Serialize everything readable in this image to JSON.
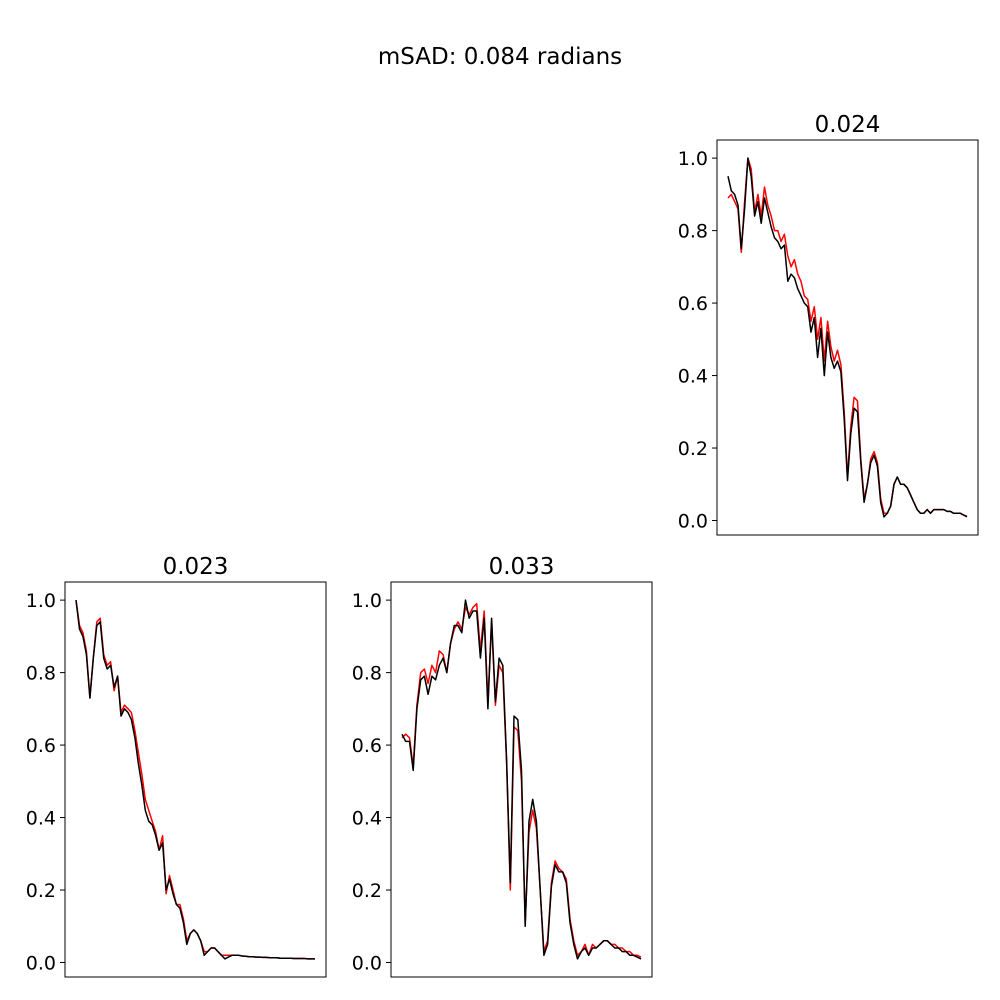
{
  "suptitle": "mSAD: 0.084 radians",
  "colors": {
    "reference": "#ff0000",
    "estimate": "#000000"
  },
  "chart_data": [
    {
      "type": "line",
      "title": "0.024",
      "ylim": [
        -0.04,
        1.05
      ],
      "yticks": [
        "0.0",
        "0.2",
        "0.4",
        "0.6",
        "0.8",
        "1.0"
      ],
      "xticks": "hidden",
      "series": [
        {
          "values": [
            0.89,
            0.9,
            0.88,
            0.86,
            0.74,
            0.88,
            1.0,
            0.97,
            0.85,
            0.9,
            0.84,
            0.92,
            0.87,
            0.84,
            0.8,
            0.8,
            0.77,
            0.79,
            0.73,
            0.7,
            0.72,
            0.68,
            0.66,
            0.62,
            0.61,
            0.55,
            0.59,
            0.5,
            0.56,
            0.44,
            0.55,
            0.48,
            0.44,
            0.47,
            0.43,
            0.3,
            0.12,
            0.26,
            0.34,
            0.33,
            0.17,
            0.06,
            0.1,
            0.17,
            0.19,
            0.16,
            0.06,
            0.02,
            0.02,
            0.04,
            0.1,
            0.12,
            0.1,
            0.1,
            0.09,
            0.07,
            0.05,
            0.03,
            0.02,
            0.02,
            0.03,
            0.02,
            0.03,
            0.03,
            0.03,
            0.03,
            0.025,
            0.025,
            0.02,
            0.02,
            0.02,
            0.015,
            0.012
          ]
        },
        {
          "values": [
            0.95,
            0.91,
            0.9,
            0.87,
            0.75,
            0.86,
            1.0,
            0.95,
            0.84,
            0.88,
            0.82,
            0.89,
            0.85,
            0.81,
            0.78,
            0.77,
            0.75,
            0.76,
            0.66,
            0.68,
            0.67,
            0.64,
            0.62,
            0.6,
            0.59,
            0.52,
            0.56,
            0.45,
            0.53,
            0.4,
            0.52,
            0.45,
            0.42,
            0.44,
            0.41,
            0.28,
            0.11,
            0.24,
            0.31,
            0.3,
            0.16,
            0.05,
            0.1,
            0.16,
            0.18,
            0.15,
            0.05,
            0.01,
            0.02,
            0.04,
            0.1,
            0.12,
            0.1,
            0.1,
            0.09,
            0.07,
            0.05,
            0.03,
            0.02,
            0.02,
            0.03,
            0.02,
            0.03,
            0.03,
            0.03,
            0.03,
            0.025,
            0.025,
            0.02,
            0.02,
            0.02,
            0.015,
            0.01
          ]
        }
      ]
    },
    {
      "type": "line",
      "title": "0.023",
      "ylim": [
        -0.04,
        1.05
      ],
      "yticks": [
        "0.0",
        "0.2",
        "0.4",
        "0.6",
        "0.8",
        "1.0"
      ],
      "xticks": "hidden",
      "series": [
        {
          "values": [
            1.0,
            0.93,
            0.91,
            0.86,
            0.73,
            0.84,
            0.94,
            0.95,
            0.85,
            0.82,
            0.83,
            0.75,
            0.79,
            0.69,
            0.71,
            0.7,
            0.69,
            0.64,
            0.58,
            0.52,
            0.45,
            0.42,
            0.39,
            0.36,
            0.31,
            0.35,
            0.19,
            0.24,
            0.2,
            0.16,
            0.16,
            0.12,
            0.06,
            0.08,
            0.09,
            0.08,
            0.06,
            0.03,
            0.03,
            0.04,
            0.04,
            0.03,
            0.02,
            0.02,
            0.02,
            0.02,
            0.02,
            0.02,
            0.018,
            0.017,
            0.016,
            0.016,
            0.015,
            0.015,
            0.014,
            0.014,
            0.013,
            0.013,
            0.013,
            0.012,
            0.012,
            0.012,
            0.012,
            0.011,
            0.011,
            0.011,
            0.011,
            0.01,
            0.01,
            0.01
          ]
        },
        {
          "values": [
            1.0,
            0.92,
            0.9,
            0.85,
            0.73,
            0.84,
            0.93,
            0.94,
            0.84,
            0.81,
            0.82,
            0.76,
            0.79,
            0.68,
            0.7,
            0.69,
            0.67,
            0.62,
            0.55,
            0.49,
            0.42,
            0.39,
            0.38,
            0.35,
            0.31,
            0.33,
            0.2,
            0.23,
            0.19,
            0.16,
            0.15,
            0.11,
            0.05,
            0.08,
            0.09,
            0.08,
            0.06,
            0.02,
            0.03,
            0.04,
            0.04,
            0.03,
            0.02,
            0.01,
            0.015,
            0.02,
            0.02,
            0.02,
            0.018,
            0.017,
            0.016,
            0.016,
            0.015,
            0.015,
            0.014,
            0.014,
            0.013,
            0.013,
            0.013,
            0.012,
            0.012,
            0.012,
            0.012,
            0.011,
            0.011,
            0.011,
            0.011,
            0.01,
            0.01,
            0.01
          ]
        }
      ]
    },
    {
      "type": "line",
      "title": "0.033",
      "ylim": [
        -0.04,
        1.05
      ],
      "yticks": [
        "0.0",
        "0.2",
        "0.4",
        "0.6",
        "0.8",
        "1.0"
      ],
      "xticks": "hidden",
      "series": [
        {
          "values": [
            0.62,
            0.63,
            0.62,
            0.54,
            0.71,
            0.8,
            0.81,
            0.77,
            0.82,
            0.8,
            0.86,
            0.85,
            0.8,
            0.88,
            0.92,
            0.94,
            0.92,
            0.98,
            0.96,
            0.98,
            0.99,
            0.86,
            0.97,
            0.72,
            0.94,
            0.71,
            0.82,
            0.8,
            0.55,
            0.2,
            0.65,
            0.64,
            0.5,
            0.11,
            0.36,
            0.42,
            0.37,
            0.2,
            0.03,
            0.06,
            0.22,
            0.28,
            0.26,
            0.25,
            0.23,
            0.12,
            0.06,
            0.02,
            0.03,
            0.05,
            0.02,
            0.05,
            0.04,
            0.05,
            0.06,
            0.06,
            0.05,
            0.05,
            0.04,
            0.04,
            0.03,
            0.03,
            0.02,
            0.02,
            0.015
          ]
        },
        {
          "values": [
            0.63,
            0.61,
            0.61,
            0.53,
            0.7,
            0.78,
            0.79,
            0.74,
            0.79,
            0.78,
            0.82,
            0.84,
            0.8,
            0.88,
            0.93,
            0.93,
            0.91,
            1.0,
            0.95,
            0.97,
            0.97,
            0.84,
            0.95,
            0.7,
            0.95,
            0.72,
            0.84,
            0.82,
            0.56,
            0.22,
            0.68,
            0.67,
            0.53,
            0.1,
            0.39,
            0.45,
            0.39,
            0.2,
            0.02,
            0.05,
            0.21,
            0.27,
            0.25,
            0.25,
            0.22,
            0.11,
            0.05,
            0.01,
            0.03,
            0.04,
            0.02,
            0.04,
            0.04,
            0.05,
            0.06,
            0.06,
            0.05,
            0.04,
            0.04,
            0.03,
            0.03,
            0.02,
            0.02,
            0.015,
            0.01
          ]
        }
      ]
    }
  ]
}
